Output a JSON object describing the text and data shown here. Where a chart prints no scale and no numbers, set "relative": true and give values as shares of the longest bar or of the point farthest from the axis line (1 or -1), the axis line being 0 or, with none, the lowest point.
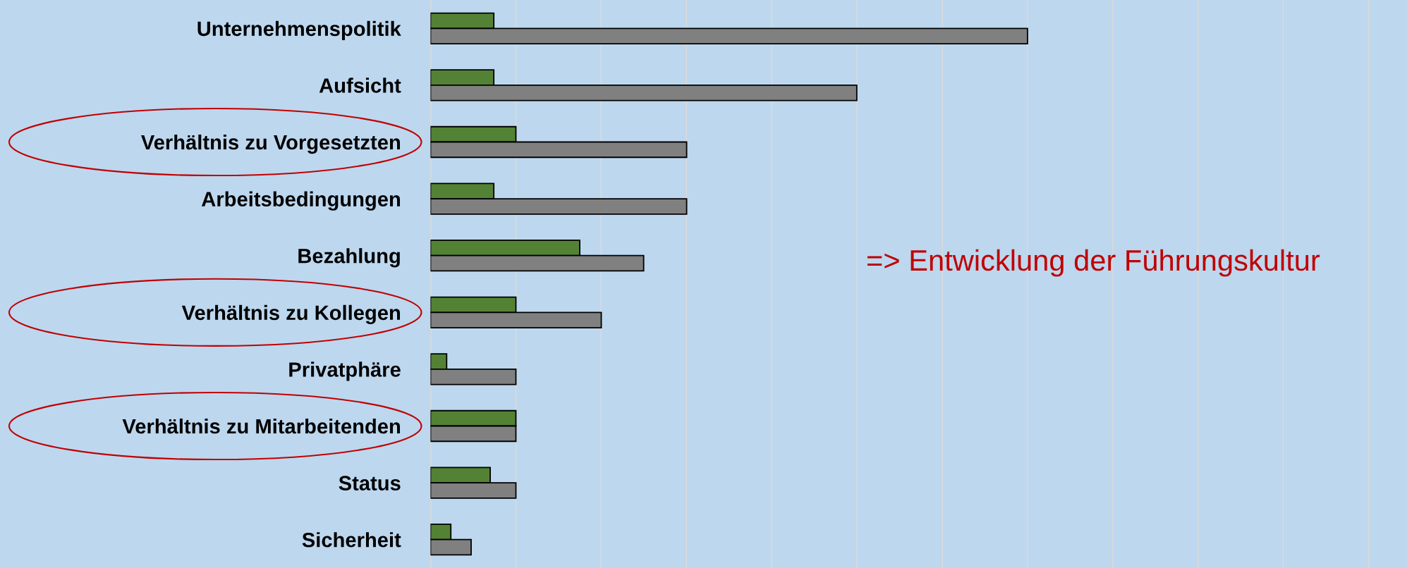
{
  "chart_data": {
    "type": "bar",
    "orientation": "horizontal",
    "relative": true,
    "categories": [
      "Unternehmenspolitik",
      "Aufsicht",
      "Verhältnis zu Vorgesetzten",
      "Arbeitsbedingungen",
      "Bezahlung",
      "Verhältnis zu Kollegen",
      "Privatphäre",
      "Verhältnis zu Mitarbeitenden",
      "Status",
      "Sicherheit"
    ],
    "series": [
      {
        "color": "#548235",
        "values": [
          0.106,
          0.106,
          0.143,
          0.106,
          0.25,
          0.143,
          0.027,
          0.143,
          0.1,
          0.034
        ]
      },
      {
        "color": "#808080",
        "values": [
          1,
          0.714,
          0.429,
          0.429,
          0.357,
          0.286,
          0.143,
          0.143,
          0.143,
          0.068
        ]
      }
    ],
    "grid": "x",
    "annotations": [
      "=> Entwicklung der Führungskultur"
    ]
  }
}
